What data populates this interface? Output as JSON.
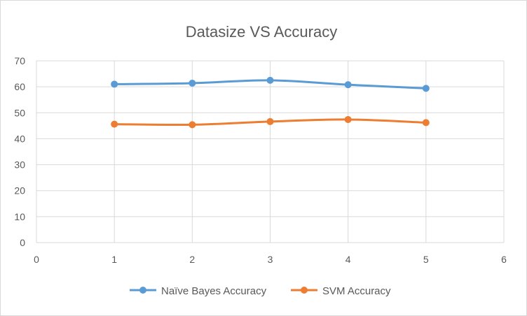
{
  "chart_data": {
    "type": "line",
    "title": "Datasize VS Accuracy",
    "xlabel": "",
    "ylabel": "",
    "xlim": [
      0,
      6
    ],
    "ylim": [
      0,
      70
    ],
    "xticks": [
      "0",
      "1",
      "2",
      "3",
      "4",
      "5",
      "6"
    ],
    "yticks": [
      "0",
      "10",
      "20",
      "30",
      "40",
      "50",
      "60",
      "70"
    ],
    "grid": true,
    "legend_position": "bottom",
    "x": [
      1,
      2,
      3,
      4,
      5
    ],
    "series": [
      {
        "name": "Naïve Bayes Accuracy",
        "color": "#5B9BD5",
        "values": [
          61.0,
          61.4,
          62.5,
          60.8,
          59.4
        ]
      },
      {
        "name": "SVM Accuracy",
        "color": "#ED7D31",
        "values": [
          45.6,
          45.4,
          46.6,
          47.4,
          46.2
        ]
      }
    ]
  }
}
